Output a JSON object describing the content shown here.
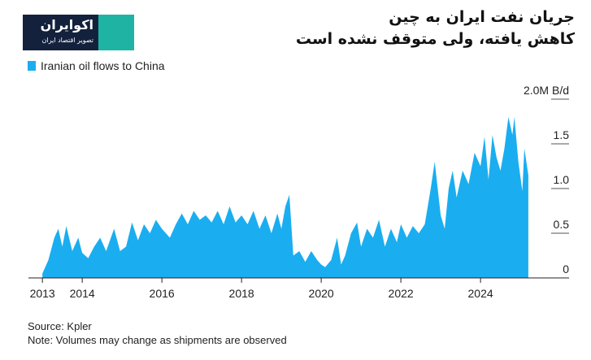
{
  "logo": {
    "name": "اکوایران",
    "tagline": "تصویر اقتصاد ایران"
  },
  "chart_data": {
    "type": "area",
    "title": [
      "جریان نفت ایران به چین",
      "کاهش یافته، ولی متوقف نشده است"
    ],
    "source": "Source: Kpler",
    "note": "Note: Volumes may change as shipments are observed",
    "x": [
      2013.0,
      2013.15,
      2013.3,
      2013.4,
      2013.5,
      2013.6,
      2013.75,
      2013.9,
      2014.0,
      2014.15,
      2014.3,
      2014.45,
      2014.6,
      2014.8,
      2014.95,
      2015.1,
      2015.25,
      2015.4,
      2015.55,
      2015.7,
      2015.85,
      2016.0,
      2016.2,
      2016.35,
      2016.5,
      2016.65,
      2016.8,
      2016.95,
      2017.1,
      2017.25,
      2017.4,
      2017.55,
      2017.7,
      2017.85,
      2018.0,
      2018.15,
      2018.3,
      2018.45,
      2018.6,
      2018.75,
      2018.9,
      2019.0,
      2019.1,
      2019.2,
      2019.3,
      2019.45,
      2019.6,
      2019.75,
      2019.9,
      2020.0,
      2020.1,
      2020.25,
      2020.4,
      2020.5,
      2020.6,
      2020.75,
      2020.9,
      2021.0,
      2021.15,
      2021.3,
      2021.45,
      2021.6,
      2021.75,
      2021.9,
      2022.0,
      2022.15,
      2022.3,
      2022.45,
      2022.6,
      2022.75,
      2022.85,
      2023.0,
      2023.1,
      2023.2,
      2023.3,
      2023.4,
      2023.55,
      2023.7,
      2023.85,
      2024.0,
      2024.1,
      2024.2,
      2024.3,
      2024.4,
      2024.5,
      2024.6,
      2024.7,
      2024.8,
      2024.85,
      2024.95,
      2025.05,
      2025.1,
      2025.2
    ],
    "series": [
      {
        "name": "Iranian oil flows to China",
        "color": "#1aaef0",
        "values": [
          0.05,
          0.2,
          0.45,
          0.55,
          0.35,
          0.58,
          0.3,
          0.45,
          0.28,
          0.22,
          0.35,
          0.45,
          0.3,
          0.55,
          0.3,
          0.35,
          0.62,
          0.42,
          0.6,
          0.5,
          0.65,
          0.55,
          0.45,
          0.6,
          0.72,
          0.6,
          0.75,
          0.65,
          0.7,
          0.62,
          0.75,
          0.6,
          0.8,
          0.62,
          0.7,
          0.6,
          0.75,
          0.55,
          0.7,
          0.5,
          0.72,
          0.55,
          0.8,
          0.93,
          0.25,
          0.3,
          0.18,
          0.3,
          0.2,
          0.15,
          0.12,
          0.2,
          0.45,
          0.15,
          0.25,
          0.5,
          0.62,
          0.35,
          0.55,
          0.45,
          0.65,
          0.35,
          0.55,
          0.4,
          0.6,
          0.45,
          0.58,
          0.5,
          0.6,
          1.0,
          1.3,
          0.7,
          0.55,
          1.0,
          1.2,
          0.9,
          1.2,
          1.05,
          1.4,
          1.25,
          1.58,
          1.1,
          1.6,
          1.35,
          1.2,
          1.45,
          1.8,
          1.6,
          1.8,
          1.3,
          0.97,
          1.45,
          1.15
        ]
      }
    ],
    "xlim": [
      2012.65,
      2026.1
    ],
    "xticks": [
      2013,
      2014,
      2016,
      2018,
      2020,
      2022,
      2024
    ],
    "ylim": [
      0,
      2.0
    ],
    "yticks": [
      0,
      0.5,
      {
        "value": 1,
        "label": "1.0"
      },
      1.5,
      {
        "value": 2,
        "label": "2.0M B/d"
      }
    ]
  }
}
